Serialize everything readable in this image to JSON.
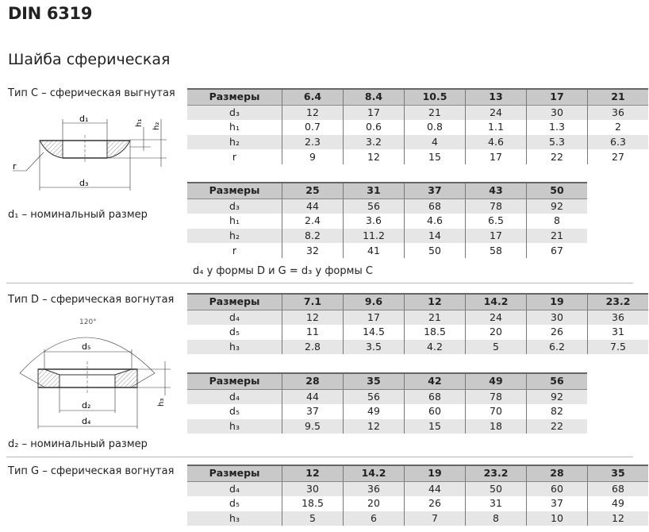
{
  "title": "DIN 6319",
  "subtitle": "Шайба сферическая",
  "type_c": {
    "label": "Тип C – сферическая выгнутая",
    "nominal_note": "d₁ – номинальный размер",
    "drawing_labels": {
      "d1": "d₁",
      "d3": "d₃",
      "h1": "h₁",
      "h2": "h₂",
      "r": "r"
    },
    "tables": [
      {
        "header": [
          "Размеры",
          "6.4",
          "8.4",
          "10.5",
          "13",
          "17",
          "21"
        ],
        "rows": [
          [
            "d₃",
            "12",
            "17",
            "21",
            "24",
            "30",
            "36"
          ],
          [
            "h₁",
            "0.7",
            "0.6",
            "0.8",
            "1.1",
            "1.3",
            "2"
          ],
          [
            "h₂",
            "2.3",
            "3.2",
            "4",
            "4.6",
            "5.3",
            "6.3"
          ],
          [
            "r",
            "9",
            "12",
            "15",
            "17",
            "22",
            "27"
          ]
        ]
      },
      {
        "header": [
          "Размеры",
          "25",
          "31",
          "37",
          "43",
          "50"
        ],
        "rows": [
          [
            "d₃",
            "44",
            "56",
            "68",
            "78",
            "92"
          ],
          [
            "h₁",
            "2.4",
            "3.6",
            "4.6",
            "6.5",
            "8"
          ],
          [
            "h₂",
            "8.2",
            "11.2",
            "14",
            "17",
            "21"
          ],
          [
            "r",
            "32",
            "41",
            "50",
            "58",
            "67"
          ]
        ]
      }
    ],
    "footnote": "d₄ у формы D и G = d₃ у формы C"
  },
  "type_d": {
    "label": "Тип D – сферическая вогнутая",
    "nominal_note": "d₂ – номинальный размер",
    "drawing_labels": {
      "angle": "120°",
      "d5": "d₅",
      "d2": "d₂",
      "d4": "d₄",
      "h3": "h₃"
    },
    "tables": [
      {
        "header": [
          "Размеры",
          "7.1",
          "9.6",
          "12",
          "14.2",
          "19",
          "23.2"
        ],
        "rows": [
          [
            "d₄",
            "12",
            "17",
            "21",
            "24",
            "30",
            "36"
          ],
          [
            "d₅",
            "11",
            "14.5",
            "18.5",
            "20",
            "26",
            "31"
          ],
          [
            "h₃",
            "2.8",
            "3.5",
            "4.2",
            "5",
            "6.2",
            "7.5"
          ]
        ]
      },
      {
        "header": [
          "Размеры",
          "28",
          "35",
          "42",
          "49",
          "56"
        ],
        "rows": [
          [
            "d₄",
            "44",
            "56",
            "68",
            "78",
            "92"
          ],
          [
            "d₅",
            "37",
            "49",
            "60",
            "70",
            "82"
          ],
          [
            "h₃",
            "9.5",
            "12",
            "15",
            "18",
            "22"
          ]
        ]
      }
    ]
  },
  "type_g": {
    "label": "Тип G – сферическая вогнутая",
    "tables": [
      {
        "header": [
          "Размеры",
          "12",
          "14.2",
          "19",
          "23.2",
          "28",
          "35"
        ],
        "rows": [
          [
            "d₄",
            "30",
            "36",
            "44",
            "50",
            "60",
            "68"
          ],
          [
            "d₅",
            "18.5",
            "20",
            "26",
            "31",
            "37",
            "49"
          ],
          [
            "h₃",
            "5",
            "6",
            "7",
            "8",
            "10",
            "12"
          ]
        ]
      }
    ]
  }
}
